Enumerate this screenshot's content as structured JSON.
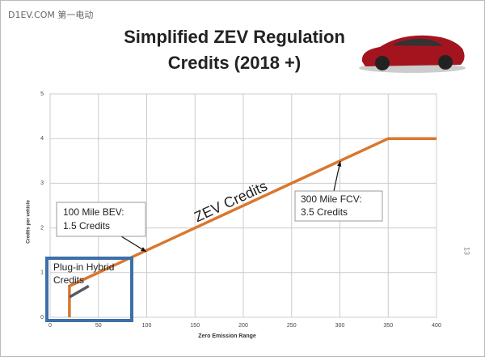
{
  "watermark": "D1EV.COM 第一电动",
  "page_number": "13",
  "chart_data": {
    "type": "line",
    "title": [
      "Simplified ZEV Regulation",
      "Credits (2018 +)"
    ],
    "x_label": "Zero Emission Range",
    "y_label": "Credits per vehicle",
    "xlim": [
      0,
      400
    ],
    "xticks": [
      0,
      50,
      100,
      150,
      200,
      250,
      300,
      350,
      400
    ],
    "ylim": [
      0,
      5
    ],
    "yticks": [
      0,
      1,
      2,
      3,
      4,
      5
    ],
    "grid": true,
    "series": [
      {
        "color": "#d9772e",
        "x": [
          20,
          20,
          350,
          400
        ],
        "values": [
          0,
          0.7,
          4,
          4
        ]
      },
      {
        "color": "#555a66",
        "x": [
          20,
          40
        ],
        "values": [
          0.45,
          0.7
        ]
      }
    ],
    "annotations": [
      {
        "lines": [
          "100 Mile BEV:",
          "1.5 Credits"
        ]
      },
      {
        "lines": [
          "300 Mile FCV:",
          "3.5 Credits"
        ]
      },
      {
        "lines": [
          "ZEV Credits"
        ]
      },
      {
        "lines": [
          "Plug-in Hybrid",
          "Credits"
        ]
      }
    ]
  }
}
